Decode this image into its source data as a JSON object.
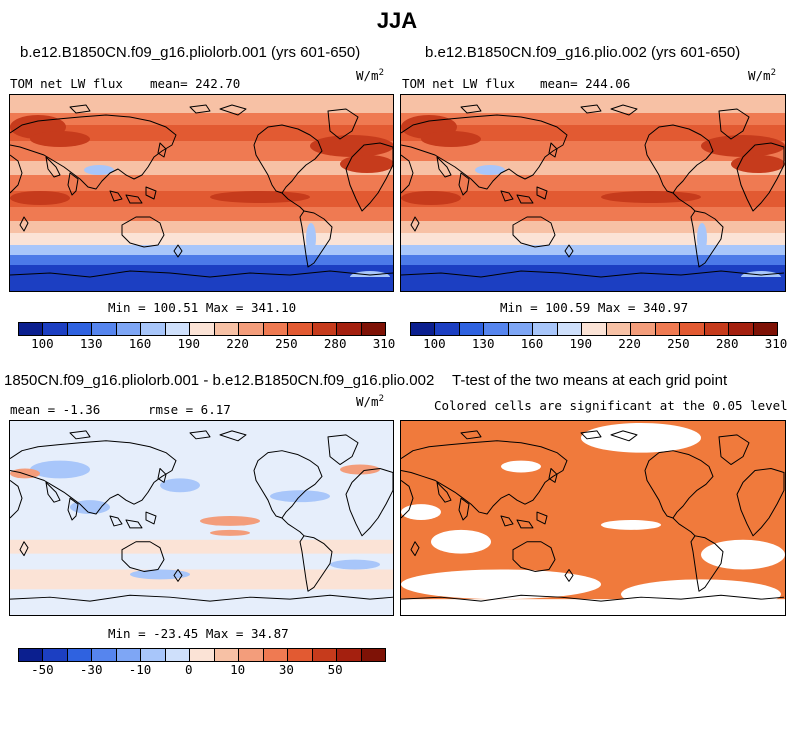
{
  "figure": {
    "title": "JJA"
  },
  "panels": [
    {
      "title": "b.e12.B1850CN.f09_g16.pliolorb.001 (yrs 601-650)",
      "left_label": "TOM net LW flux",
      "center_label": "mean= 242.70",
      "units": "W/m",
      "units_exp": "2",
      "minmax": "Min = 100.51 Max = 341.10"
    },
    {
      "title": "b.e12.B1850CN.f09_g16.plio.002 (yrs 601-650)",
      "left_label": "TOM net LW flux",
      "center_label": "mean= 244.06",
      "units": "W/m",
      "units_exp": "2",
      "minmax": "Min = 100.59 Max = 340.97"
    },
    {
      "title": "1850CN.f09_g16.pliolorb.001 - b.e12.B1850CN.f09_g16.plio.002",
      "left_label": "mean =  -1.36",
      "center_label": "rmse =   6.17",
      "units": "W/m",
      "units_exp": "2",
      "minmax": "Min = -23.45 Max = 34.87"
    },
    {
      "title": "T-test of the two means at each grid point",
      "center_label": "Colored cells are significant at the 0.05 level"
    }
  ],
  "colorbars": {
    "absolute": {
      "colors": [
        "#0b1f8f",
        "#1c3fc2",
        "#2f62e0",
        "#5685ee",
        "#7ea6f5",
        "#a8c6fa",
        "#cfe0fb",
        "#fbe3d6",
        "#f7c1a5",
        "#f39d7b",
        "#ef7a52",
        "#e25a32",
        "#c63b1c",
        "#a4200f",
        "#7e1206"
      ],
      "labels": [
        "100",
        "130",
        "160",
        "190",
        "220",
        "250",
        "280",
        "310"
      ]
    },
    "difference": {
      "colors": [
        "#0b1f8f",
        "#1c3fc2",
        "#2f62e0",
        "#5685ee",
        "#7ea6f5",
        "#a8c6fa",
        "#cfe0fb",
        "#fbe3d6",
        "#f7c1a5",
        "#f39d7b",
        "#ef7a52",
        "#e25a32",
        "#c63b1c",
        "#a4200f",
        "#7e1206"
      ],
      "labels": [
        "-50",
        "-30",
        "-10",
        "0",
        "10",
        "30",
        "50"
      ]
    }
  },
  "map_colors": {
    "abs_bands": [
      "#1c3fc2",
      "#4c7ae8",
      "#a8c6fa",
      "#fbe3d6",
      "#f7c1a5",
      "#ef7a52",
      "#e25a32",
      "#c63b1c"
    ],
    "diff_base": "#e6eefb",
    "diff_light_blue": "#cfe0fb",
    "diff_blue": "#a8c6fa",
    "diff_peach": "#fbe3d6",
    "diff_orange": "#f39d7b",
    "sig_fill": "#f07a3c",
    "coast": "#000000"
  }
}
